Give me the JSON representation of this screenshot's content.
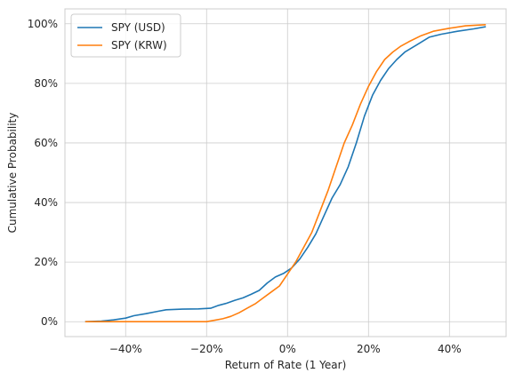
{
  "chart_data": {
    "type": "line",
    "xlabel": "Return of Rate (1 Year)",
    "ylabel": "Cumulative Probability",
    "xlim": [
      -0.55,
      0.54
    ],
    "ylim": [
      -0.05,
      1.05
    ],
    "x_ticks": [
      -0.4,
      -0.2,
      0.0,
      0.2,
      0.4
    ],
    "x_tick_labels": [
      "−40%",
      "−20%",
      "0%",
      "20%",
      "40%"
    ],
    "y_ticks": [
      0.0,
      0.2,
      0.4,
      0.6,
      0.8,
      1.0
    ],
    "y_tick_labels": [
      "0%",
      "20%",
      "40%",
      "60%",
      "80%",
      "100%"
    ],
    "grid": true,
    "legend_position": "top-left",
    "series": [
      {
        "name": "SPY (USD)",
        "color": "#1f77b4",
        "points": [
          [
            -0.5,
            0.0
          ],
          [
            -0.46,
            0.002
          ],
          [
            -0.43,
            0.006
          ],
          [
            -0.4,
            0.012
          ],
          [
            -0.38,
            0.02
          ],
          [
            -0.35,
            0.027
          ],
          [
            -0.32,
            0.035
          ],
          [
            -0.3,
            0.04
          ],
          [
            -0.26,
            0.042
          ],
          [
            -0.22,
            0.043
          ],
          [
            -0.19,
            0.045
          ],
          [
            -0.17,
            0.055
          ],
          [
            -0.15,
            0.062
          ],
          [
            -0.13,
            0.072
          ],
          [
            -0.11,
            0.08
          ],
          [
            -0.09,
            0.092
          ],
          [
            -0.07,
            0.105
          ],
          [
            -0.05,
            0.13
          ],
          [
            -0.03,
            0.15
          ],
          [
            -0.01,
            0.162
          ],
          [
            0.01,
            0.18
          ],
          [
            0.03,
            0.21
          ],
          [
            0.05,
            0.25
          ],
          [
            0.07,
            0.295
          ],
          [
            0.09,
            0.355
          ],
          [
            0.11,
            0.415
          ],
          [
            0.13,
            0.46
          ],
          [
            0.15,
            0.52
          ],
          [
            0.17,
            0.6
          ],
          [
            0.19,
            0.69
          ],
          [
            0.21,
            0.76
          ],
          [
            0.23,
            0.81
          ],
          [
            0.25,
            0.85
          ],
          [
            0.27,
            0.88
          ],
          [
            0.29,
            0.905
          ],
          [
            0.32,
            0.93
          ],
          [
            0.35,
            0.955
          ],
          [
            0.38,
            0.965
          ],
          [
            0.42,
            0.975
          ],
          [
            0.46,
            0.983
          ],
          [
            0.49,
            0.99
          ]
        ]
      },
      {
        "name": "SPY (KRW)",
        "color": "#ff7f0e",
        "points": [
          [
            -0.5,
            0.0
          ],
          [
            -0.4,
            0.0
          ],
          [
            -0.3,
            0.0
          ],
          [
            -0.2,
            0.0
          ],
          [
            -0.18,
            0.005
          ],
          [
            -0.16,
            0.01
          ],
          [
            -0.14,
            0.018
          ],
          [
            -0.12,
            0.03
          ],
          [
            -0.1,
            0.045
          ],
          [
            -0.08,
            0.06
          ],
          [
            -0.06,
            0.08
          ],
          [
            -0.04,
            0.1
          ],
          [
            -0.02,
            0.12
          ],
          [
            0.0,
            0.16
          ],
          [
            0.02,
            0.2
          ],
          [
            0.04,
            0.25
          ],
          [
            0.06,
            0.3
          ],
          [
            0.08,
            0.37
          ],
          [
            0.1,
            0.44
          ],
          [
            0.12,
            0.52
          ],
          [
            0.14,
            0.6
          ],
          [
            0.16,
            0.66
          ],
          [
            0.18,
            0.73
          ],
          [
            0.2,
            0.79
          ],
          [
            0.22,
            0.84
          ],
          [
            0.24,
            0.88
          ],
          [
            0.26,
            0.905
          ],
          [
            0.28,
            0.925
          ],
          [
            0.3,
            0.94
          ],
          [
            0.33,
            0.96
          ],
          [
            0.36,
            0.975
          ],
          [
            0.4,
            0.985
          ],
          [
            0.44,
            0.993
          ],
          [
            0.49,
            0.997
          ]
        ]
      }
    ]
  }
}
